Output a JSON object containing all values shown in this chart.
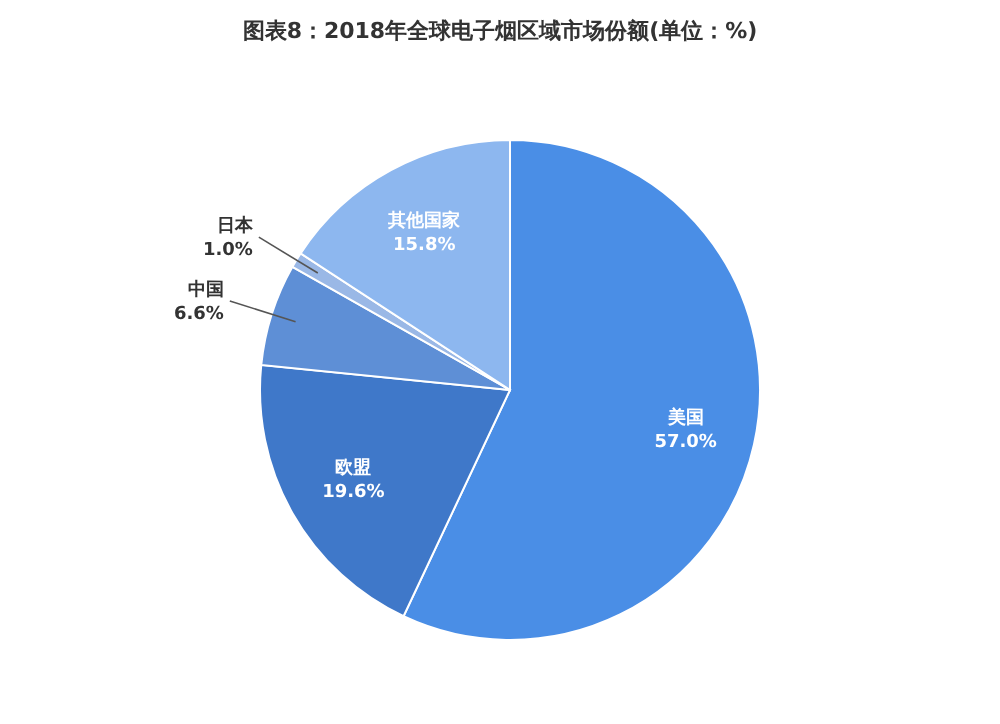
{
  "chart_data": {
    "type": "pie",
    "title": "图表8：2018年全球电子烟区域市场份额(单位：%)",
    "categories": [
      "美国",
      "欧盟",
      "中国",
      "日本",
      "其他国家"
    ],
    "values": [
      57.0,
      19.6,
      6.6,
      1.0,
      15.8
    ],
    "value_labels": [
      "57.0%",
      "19.6%",
      "6.6%",
      "1.0%",
      "15.8%"
    ],
    "colors": [
      "#4a8ee6",
      "#3f78c9",
      "#5e8fd6",
      "#9ab8e6",
      "#8db7ef"
    ]
  }
}
